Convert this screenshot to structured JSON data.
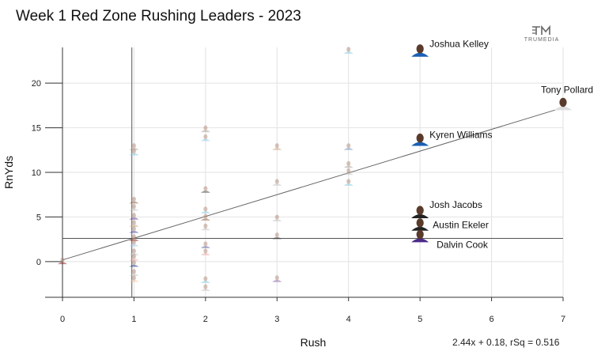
{
  "chart_data": {
    "type": "scatter",
    "title": "Week 1 Red Zone Rushing Leaders - 2023",
    "xlabel": "Rush",
    "ylabel": "RnYds",
    "xlim": [
      0,
      7
    ],
    "ylim": [
      -4,
      24
    ],
    "xticks": [
      0,
      1,
      2,
      3,
      4,
      5,
      6,
      7
    ],
    "yticks": [
      0,
      5,
      10,
      15,
      20
    ],
    "grid": true,
    "trendline": {
      "slope": 2.44,
      "intercept": 0.18,
      "rsq": 0.516,
      "label": "2.44x + 0.18, rSq = 0.516"
    },
    "mean_lines": {
      "x": 0.97,
      "y": 2.6
    },
    "labeled_points": [
      {
        "name": "Joshua Kelley",
        "x": 5,
        "y": 23.5,
        "color": "#1a5fb4"
      },
      {
        "name": "Tony Pollard",
        "x": 7,
        "y": 17.5,
        "color": "#dddddd"
      },
      {
        "name": "Kyren Williams",
        "x": 5,
        "y": 13.5,
        "color": "#1a5fb4"
      },
      {
        "name": "Josh Jacobs",
        "x": 5,
        "y": 5.4,
        "color": "#222222"
      },
      {
        "name": "Austin Ekeler",
        "x": 5,
        "y": 4.0,
        "color": "#222222"
      },
      {
        "name": "Dalvin Cook",
        "x": 5,
        "y": 2.7,
        "color": "#4b2a8a"
      }
    ],
    "points": [
      {
        "x": 0,
        "y": 0,
        "color": "#8b1a1a"
      },
      {
        "x": 1,
        "y": 12.8,
        "color": "#a89a90"
      },
      {
        "x": 1,
        "y": 12.2,
        "color": "#7ec8e3"
      },
      {
        "x": 1,
        "y": 6.8,
        "color": "#8b5a3c"
      },
      {
        "x": 1,
        "y": 6.0,
        "color": "#c0c0c0"
      },
      {
        "x": 1,
        "y": 5.0,
        "color": "#5a3a8a"
      },
      {
        "x": 1,
        "y": 4.2,
        "color": "#c8a07a"
      },
      {
        "x": 1,
        "y": 3.5,
        "color": "#4040a0"
      },
      {
        "x": 1,
        "y": 2.6,
        "color": "#8b1a1a"
      },
      {
        "x": 1,
        "y": 2.0,
        "color": "#a0c8e0"
      },
      {
        "x": 1,
        "y": 1.0,
        "color": "#c0c0c0"
      },
      {
        "x": 1,
        "y": 0.4,
        "color": "#f0a0a0"
      },
      {
        "x": 1,
        "y": -0.3,
        "color": "#203080"
      },
      {
        "x": 1,
        "y": -1.3,
        "color": "#c0c0c0"
      },
      {
        "x": 1,
        "y": -2.0,
        "color": "#f0c0a0"
      },
      {
        "x": 2,
        "y": 14.8,
        "color": "#a89a90"
      },
      {
        "x": 2,
        "y": 13.8,
        "color": "#7ec8e3"
      },
      {
        "x": 2,
        "y": 8.0,
        "color": "#404040"
      },
      {
        "x": 2,
        "y": 5.7,
        "color": "#7ec8e3"
      },
      {
        "x": 2,
        "y": 4.9,
        "color": "#8b5a3c"
      },
      {
        "x": 2,
        "y": 3.8,
        "color": "#c0c0c0"
      },
      {
        "x": 2,
        "y": 1.8,
        "color": "#5a5aa0"
      },
      {
        "x": 2,
        "y": 1.0,
        "color": "#f0a0a0"
      },
      {
        "x": 2,
        "y": -2.1,
        "color": "#7ec8e3"
      },
      {
        "x": 2,
        "y": -3.0,
        "color": "#c0c0c0"
      },
      {
        "x": 3,
        "y": 12.8,
        "color": "#c8a07a"
      },
      {
        "x": 3,
        "y": 8.8,
        "color": "#c0c0c0"
      },
      {
        "x": 3,
        "y": 4.8,
        "color": "#c0c0c0"
      },
      {
        "x": 3,
        "y": 2.8,
        "color": "#404040"
      },
      {
        "x": 3,
        "y": -2.0,
        "color": "#8060a0"
      },
      {
        "x": 4,
        "y": 23.6,
        "color": "#7ec8e3"
      },
      {
        "x": 4,
        "y": 12.8,
        "color": "#7090c0"
      },
      {
        "x": 4,
        "y": 10.8,
        "color": "#a89a90"
      },
      {
        "x": 4,
        "y": 10.0,
        "color": "#c0c0c0"
      },
      {
        "x": 4,
        "y": 8.8,
        "color": "#7ec8e3"
      }
    ]
  },
  "equation_text": "2.44x + 0.18, rSq = 0.516",
  "logo": {
    "text": "TRUMEDIA",
    "icon": "trumedia-logo-icon"
  }
}
